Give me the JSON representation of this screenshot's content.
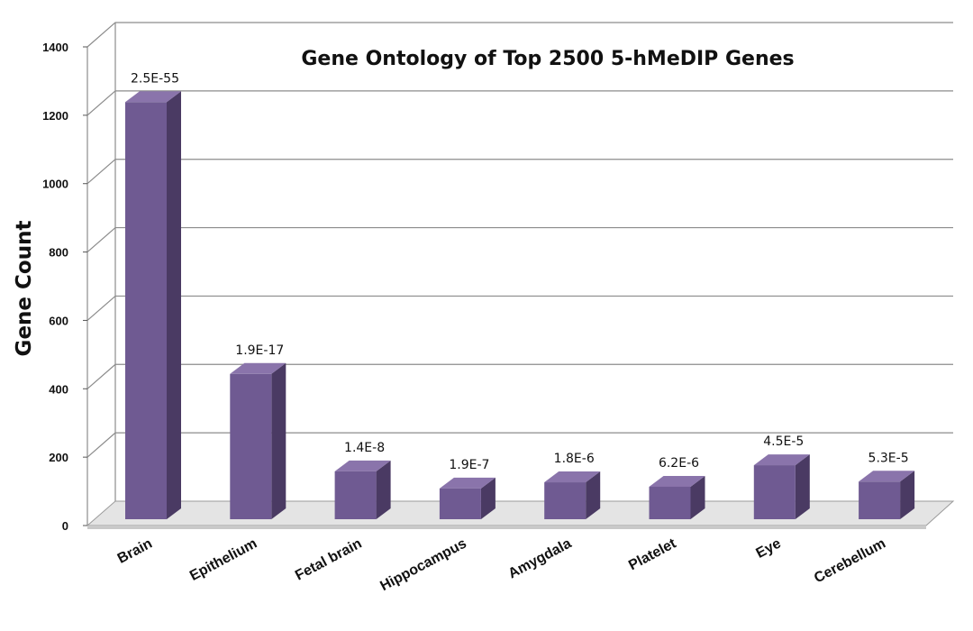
{
  "chart_data": {
    "type": "bar",
    "title": "Gene Ontology of Top 2500 5-hMeDIP Genes",
    "xlabel": "",
    "ylabel": "Gene Count",
    "ylim": [
      0,
      1400
    ],
    "yticks": [
      0,
      200,
      400,
      600,
      800,
      1000,
      1200,
      1400
    ],
    "grid": true,
    "categories": [
      "Brain",
      "Epithelium",
      "Fetal brain",
      "Hippocampus",
      "Amygdala",
      "Platelet",
      "Eye",
      "Cerebellum"
    ],
    "values": [
      1220,
      425,
      140,
      90,
      108,
      95,
      158,
      110
    ],
    "data_labels": [
      "2.5E-55",
      "1.9E-17",
      "1.4E-8",
      "1.9E-7",
      "1.8E-6",
      "6.2E-6",
      "4.5E-5",
      "5.3E-5"
    ],
    "colors": {
      "front": "#6f5a92",
      "top": "#8a74ab",
      "side": "#4a3a63",
      "grid": "#8c8c8c",
      "floor": "#e4e4e4"
    }
  }
}
